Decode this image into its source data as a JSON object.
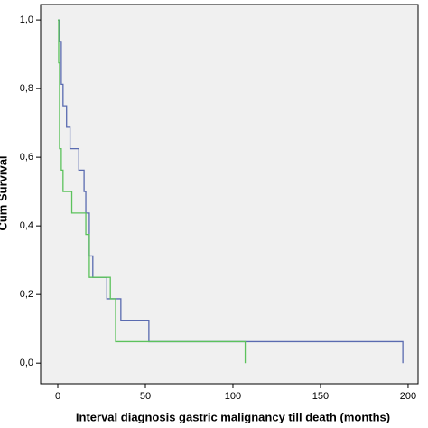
{
  "chart_data": {
    "type": "step",
    "xlabel": "Interval diagnosis gastric malignancy till death (months)",
    "ylabel": "Cum Survival",
    "series": [
      {
        "color": "#5a6bb0",
        "x": [
          0,
          1,
          2,
          3,
          5,
          7,
          12,
          15,
          16,
          18,
          20,
          28,
          36,
          52,
          197
        ],
        "values": [
          1.0,
          0.9375,
          0.8125,
          0.75,
          0.6875,
          0.625,
          0.5625,
          0.5,
          0.4375,
          0.3125,
          0.25,
          0.1875,
          0.125,
          0.0625,
          0
        ]
      },
      {
        "color": "#5cc25c",
        "x": [
          0,
          0.5,
          1,
          2,
          3,
          8,
          16,
          18,
          30,
          33,
          107
        ],
        "values": [
          1.0,
          0.875,
          0.625,
          0.5625,
          0.5,
          0.4375,
          0.375,
          0.25,
          0.1875,
          0.0625,
          0
        ]
      }
    ],
    "xlim": [
      -9.8,
      205.7
    ],
    "ylim": [
      -0.06,
      1.045
    ],
    "xticks": [
      0,
      50,
      100,
      150,
      200
    ],
    "yticks": [
      {
        "value": 0,
        "label": "0,0"
      },
      {
        "value": 0.2,
        "label": "0,2"
      },
      {
        "value": 0.4,
        "label": "0,4"
      },
      {
        "value": 0.6,
        "label": "0,6"
      },
      {
        "value": 0.8,
        "label": "0,8"
      },
      {
        "value": 1,
        "label": "1,0"
      }
    ]
  }
}
